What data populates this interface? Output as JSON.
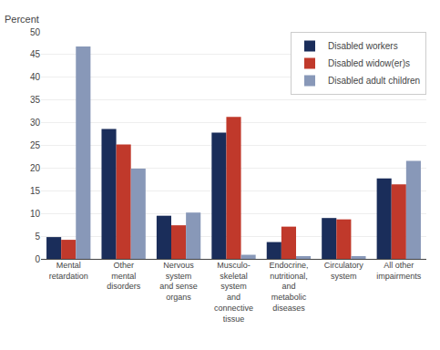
{
  "chart_data": {
    "type": "bar",
    "ylabel": "Percent",
    "categories": [
      "Mental\nretardation",
      "Other\nmental\ndisorders",
      "Nervous\nsystem\nand sense\norgans",
      "Musculo-\nskeletal\nsystem\nand\nconnective\ntissue",
      "Endocrine,\nnutritional,\nand\nmetabolic\ndiseases",
      "Circulatory\nsystem",
      "All other\nimpairments"
    ],
    "series": [
      {
        "name": "Disabled workers",
        "color": "#1a2d5a",
        "values": [
          4.8,
          28.6,
          9.5,
          27.8,
          3.7,
          9.0,
          17.7
        ]
      },
      {
        "name": "Disabled widow(er)s",
        "color": "#c0392b",
        "values": [
          4.2,
          25.2,
          7.4,
          31.3,
          7.1,
          8.7,
          16.4
        ]
      },
      {
        "name": "Disabled adult children",
        "color": "#8898b8",
        "values": [
          46.8,
          19.9,
          10.2,
          0.9,
          0.6,
          0.6,
          21.6
        ]
      }
    ],
    "ylim": [
      0,
      50
    ],
    "yticks": [
      0,
      5,
      10,
      15,
      20,
      25,
      30,
      35,
      40,
      45,
      50
    ],
    "grid": true,
    "legend": "upper right"
  }
}
